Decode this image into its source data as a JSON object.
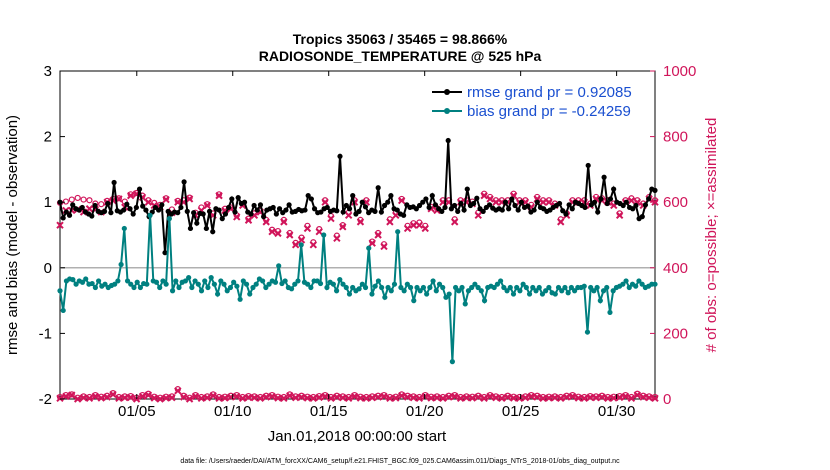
{
  "chart_data": {
    "type": "line",
    "title_line1": "Tropics 35063 / 35465 = 98.866%",
    "title_line2": "RADIOSONDE_TEMPERATURE @ 525 hPa",
    "xlabel": "Jan.01,2018 00:00:00 start",
    "ylabel_left": "rmse and bias (model - observation)",
    "ylabel_right": "# of obs: o=possible; ×=assimilated",
    "footer": "data file: /Users/raeder/DAI/ATM_forcXX/CAM6_setup/f.e21.FHIST_BGC.f09_025.CAM6assim.011/Diags_NTrS_2018-01/obs_diag_output.nc",
    "xlim": [
      1,
      32
    ],
    "ylim_left": [
      -2,
      3
    ],
    "ylim_right": [
      0,
      1000
    ],
    "x_ticks": [
      5,
      10,
      15,
      20,
      25,
      30
    ],
    "x_tick_labels": [
      "01/05",
      "01/10",
      "01/15",
      "01/20",
      "01/25",
      "01/30"
    ],
    "y_ticks_left": [
      -2,
      -1,
      0,
      1,
      2,
      3
    ],
    "y_tick_labels_left": [
      "-2",
      "-1",
      "0",
      "1",
      "2",
      "3"
    ],
    "y_ticks_right": [
      0,
      200,
      400,
      600,
      800,
      1000
    ],
    "y_tick_labels_right": [
      "0",
      "200",
      "400",
      "600",
      "800",
      "1000"
    ],
    "zero_line": 0,
    "series": [
      {
        "name": "rmse grand pr = 0.92085",
        "color": "#000000",
        "values": [
          1.0,
          0.76,
          0.85,
          0.8,
          0.96,
          0.9,
          0.88,
          0.92,
          0.85,
          0.82,
          0.79,
          0.95,
          0.86,
          0.84,
          0.86,
          0.98,
          0.84,
          1.3,
          0.87,
          0.85,
          0.88,
          0.97,
          0.9,
          0.82,
          0.92,
          1.2,
          0.94,
          0.88,
          0.78,
          0.85,
          0.92,
          0.88,
          0.96,
          0.23,
          0.86,
          0.82,
          0.85,
          0.84,
          0.92,
          1.31,
          0.86,
          0.6,
          0.84,
          0.68,
          0.83,
          0.82,
          0.6,
          0.86,
          0.55,
          0.9,
          0.88,
          0.75,
          0.82,
          0.92,
          1.05,
          0.85,
          1.07,
          0.98,
          1.0,
          0.85,
          0.82,
          0.95,
          0.88,
          0.96,
          0.78,
          0.88,
          0.9,
          0.92,
          0.82,
          0.9,
          0.84,
          0.88,
          0.96,
          0.85,
          0.86,
          0.89,
          0.87,
          0.88,
          1.1,
          1.05,
          0.9,
          0.84,
          0.85,
          0.9,
          0.92,
          0.86,
          0.88,
          0.87,
          1.7,
          0.85,
          0.95,
          0.9,
          1.1,
          0.82,
          0.86,
          1.0,
          0.93,
          0.84,
          0.88,
          0.86,
          1.22,
          0.85,
          0.95,
          1.0,
          1.1,
          0.9,
          0.88,
          0.82,
          0.8,
          0.96,
          0.92,
          0.93,
          0.9,
          0.95,
          1.0,
          1.05,
          0.92,
          1.1,
          0.96,
          0.9,
          0.86,
          0.92,
          1.94,
          0.9,
          0.95,
          0.86,
          0.98,
          0.88,
          1.2,
          0.95,
          0.98,
          1.06,
          0.9,
          0.86,
          0.92,
          0.96,
          0.91,
          0.88,
          0.9,
          0.88,
          1.0,
          0.9,
          1.05,
          0.95,
          0.88,
          1.0,
          0.92,
          0.94,
          0.85,
          0.88,
          1.0,
          0.92,
          0.9,
          0.86,
          0.88,
          0.92,
          0.95,
          0.98,
          0.87,
          0.82,
          0.96,
          0.9,
          1.0,
          0.98,
          0.95,
          0.92,
          1.56,
          0.96,
          1.0,
          0.85,
          1.05,
          1.38,
          0.98,
          1.05,
          1.2,
          1.0,
          0.98,
          0.95,
          1.0,
          0.92,
          0.9,
          0.95,
          0.75,
          0.78,
          0.96,
          1.05,
          1.2,
          1.18
        ],
        "markers": true
      },
      {
        "name": "bias grand pr = -0.24259",
        "color": "#008080",
        "values": [
          -0.35,
          -0.65,
          -0.2,
          -0.17,
          -0.18,
          -0.25,
          -0.2,
          -0.22,
          -0.17,
          -0.25,
          -0.24,
          -0.3,
          -0.2,
          -0.28,
          -0.25,
          -0.3,
          -0.27,
          -0.25,
          -0.2,
          0.05,
          0.6,
          -0.2,
          -0.25,
          -0.3,
          -0.22,
          -0.3,
          -0.24,
          -0.25,
          0.8,
          -0.2,
          -0.22,
          -0.3,
          -0.2,
          -0.25,
          0.75,
          -0.35,
          -0.2,
          -0.3,
          -0.22,
          -0.2,
          -0.15,
          -0.3,
          -0.2,
          -0.25,
          -0.35,
          -0.2,
          -0.3,
          -0.15,
          -0.25,
          -0.4,
          -0.2,
          -0.25,
          -0.35,
          -0.3,
          -0.22,
          -0.28,
          -0.48,
          -0.2,
          -0.25,
          -0.4,
          -0.3,
          -0.25,
          -0.17,
          -0.2,
          -0.3,
          -0.25,
          -0.2,
          -0.22,
          0.03,
          -0.24,
          -0.2,
          -0.3,
          -0.32,
          -0.25,
          -0.2,
          0.35,
          -0.22,
          -0.25,
          -0.3,
          -0.2,
          -0.2,
          -0.24,
          0.5,
          -0.3,
          -0.22,
          -0.25,
          -0.35,
          -0.18,
          -0.25,
          -0.3,
          -0.4,
          -0.3,
          -0.35,
          -0.32,
          -0.25,
          -0.3,
          0.3,
          -0.4,
          -0.28,
          -0.2,
          -0.3,
          -0.45,
          -0.3,
          -0.35,
          -0.25,
          0.55,
          -0.3,
          -0.35,
          -0.25,
          -0.3,
          -0.5,
          -0.3,
          -0.35,
          -0.3,
          -0.4,
          -0.3,
          -0.2,
          -0.35,
          -0.25,
          -0.3,
          -0.45,
          -0.4,
          -1.43,
          -0.3,
          -0.35,
          -0.3,
          -0.55,
          -0.35,
          -0.3,
          -0.25,
          -0.3,
          -0.35,
          -0.5,
          -0.3,
          -0.28,
          -0.3,
          -0.25,
          -0.2,
          -0.3,
          -0.35,
          -0.3,
          -0.4,
          -0.3,
          -0.35,
          -0.25,
          -0.3,
          -0.4,
          -0.3,
          -0.35,
          -0.3,
          -0.4,
          -0.35,
          -0.3,
          -0.38,
          -0.4,
          -0.3,
          -0.35,
          -0.3,
          -0.38,
          -0.3,
          -0.35,
          -0.3,
          -0.3,
          -0.28,
          -0.98,
          -0.3,
          -0.35,
          -0.3,
          -0.5,
          -0.35,
          -0.3,
          -0.68,
          -0.35,
          -0.3,
          -0.28,
          -0.25,
          -0.2,
          -0.3,
          -0.25,
          -0.28,
          -0.2,
          -0.25,
          -0.3,
          -0.28,
          -0.25,
          -0.25
        ],
        "markers": true
      }
    ],
    "obs_color": "#d0155a",
    "obs_upper_assimilated": [
      530,
      575,
      575,
      578,
      570,
      580,
      578,
      570,
      600,
      605,
      610,
      585,
      620,
      625,
      615,
      600,
      590,
      585,
      608,
      568,
      600,
      600,
      610,
      560,
      575,
      590,
      560,
      620,
      575,
      580,
      555,
      590,
      545,
      560,
      570,
      540,
      510,
      505,
      540,
      500,
      470,
      485,
      520,
      470,
      510,
      600,
      550,
      490,
      525,
      560,
      600,
      540,
      600,
      475,
      500,
      465,
      540,
      560,
      605,
      520,
      530,
      530,
      520,
      580,
      575,
      600,
      600,
      540,
      600,
      600,
      595,
      560,
      620,
      610,
      600,
      600,
      600,
      620,
      600,
      600,
      585,
      610,
      600,
      600,
      590,
      540,
      560,
      600,
      600,
      600,
      590,
      610,
      605,
      600,
      590,
      560,
      600,
      605,
      600,
      590,
      610,
      600
    ],
    "obs_upper_possible": [
      598,
      602,
      608,
      613,
      608,
      606,
      596,
      594,
      604,
      610,
      612,
      602,
      624,
      628,
      620,
      606,
      598,
      592,
      612,
      578,
      604,
      606,
      614,
      568,
      584,
      594,
      566,
      624,
      580,
      584,
      560,
      594,
      550,
      566,
      574,
      546,
      516,
      512,
      546,
      506,
      476,
      492,
      528,
      478,
      518,
      606,
      558,
      498,
      530,
      568,
      606,
      546,
      606,
      480,
      506,
      472,
      548,
      568,
      610,
      528,
      536,
      538,
      528,
      586,
      582,
      606,
      606,
      548,
      606,
      606,
      602,
      568,
      626,
      616,
      606,
      606,
      606,
      626,
      606,
      606,
      592,
      616,
      606,
      606,
      596,
      548,
      566,
      606,
      606,
      606,
      596,
      616,
      612,
      606,
      596,
      566,
      606,
      612,
      606,
      596,
      616,
      606
    ],
    "obs_lower_assimilated": [
      2,
      8,
      12,
      0,
      4,
      2,
      8,
      3,
      6,
      14,
      2,
      4,
      5,
      0,
      8,
      12,
      3,
      0,
      3,
      4,
      25,
      6,
      0,
      8,
      2,
      4,
      10,
      2,
      3,
      6,
      8,
      2,
      5,
      4,
      2,
      6,
      8,
      3,
      2,
      10,
      4,
      6,
      3,
      2,
      5,
      8,
      2,
      6,
      4,
      2,
      8,
      3,
      2,
      4,
      6,
      8,
      2,
      3,
      10,
      6,
      4,
      2,
      8,
      3,
      4,
      2,
      6,
      8,
      2,
      4,
      3,
      6,
      2,
      8,
      4,
      2,
      6,
      3,
      2,
      4,
      8,
      6,
      2,
      3,
      4,
      2,
      6,
      8,
      3,
      2,
      5,
      4,
      6,
      2,
      3,
      5,
      8,
      2,
      12,
      6,
      4,
      2
    ],
    "obs_lower_possible": [
      6,
      12,
      14,
      4,
      8,
      6,
      12,
      7,
      10,
      18,
      6,
      8,
      9,
      4,
      12,
      16,
      7,
      4,
      7,
      8,
      30,
      10,
      4,
      12,
      6,
      8,
      14,
      6,
      7,
      10,
      12,
      6,
      9,
      8,
      6,
      10,
      12,
      7,
      6,
      14,
      8,
      10,
      7,
      6,
      9,
      12,
      6,
      10,
      8,
      6,
      12,
      7,
      6,
      8,
      10,
      12,
      6,
      7,
      14,
      10,
      8,
      6,
      12,
      7,
      8,
      6,
      10,
      12,
      6,
      8,
      7,
      10,
      6,
      12,
      8,
      6,
      10,
      7,
      6,
      8,
      12,
      10,
      6,
      7,
      8,
      6,
      10,
      12,
      7,
      6,
      9,
      8,
      10,
      6,
      7,
      9,
      12,
      6,
      16,
      10,
      8,
      6
    ]
  }
}
